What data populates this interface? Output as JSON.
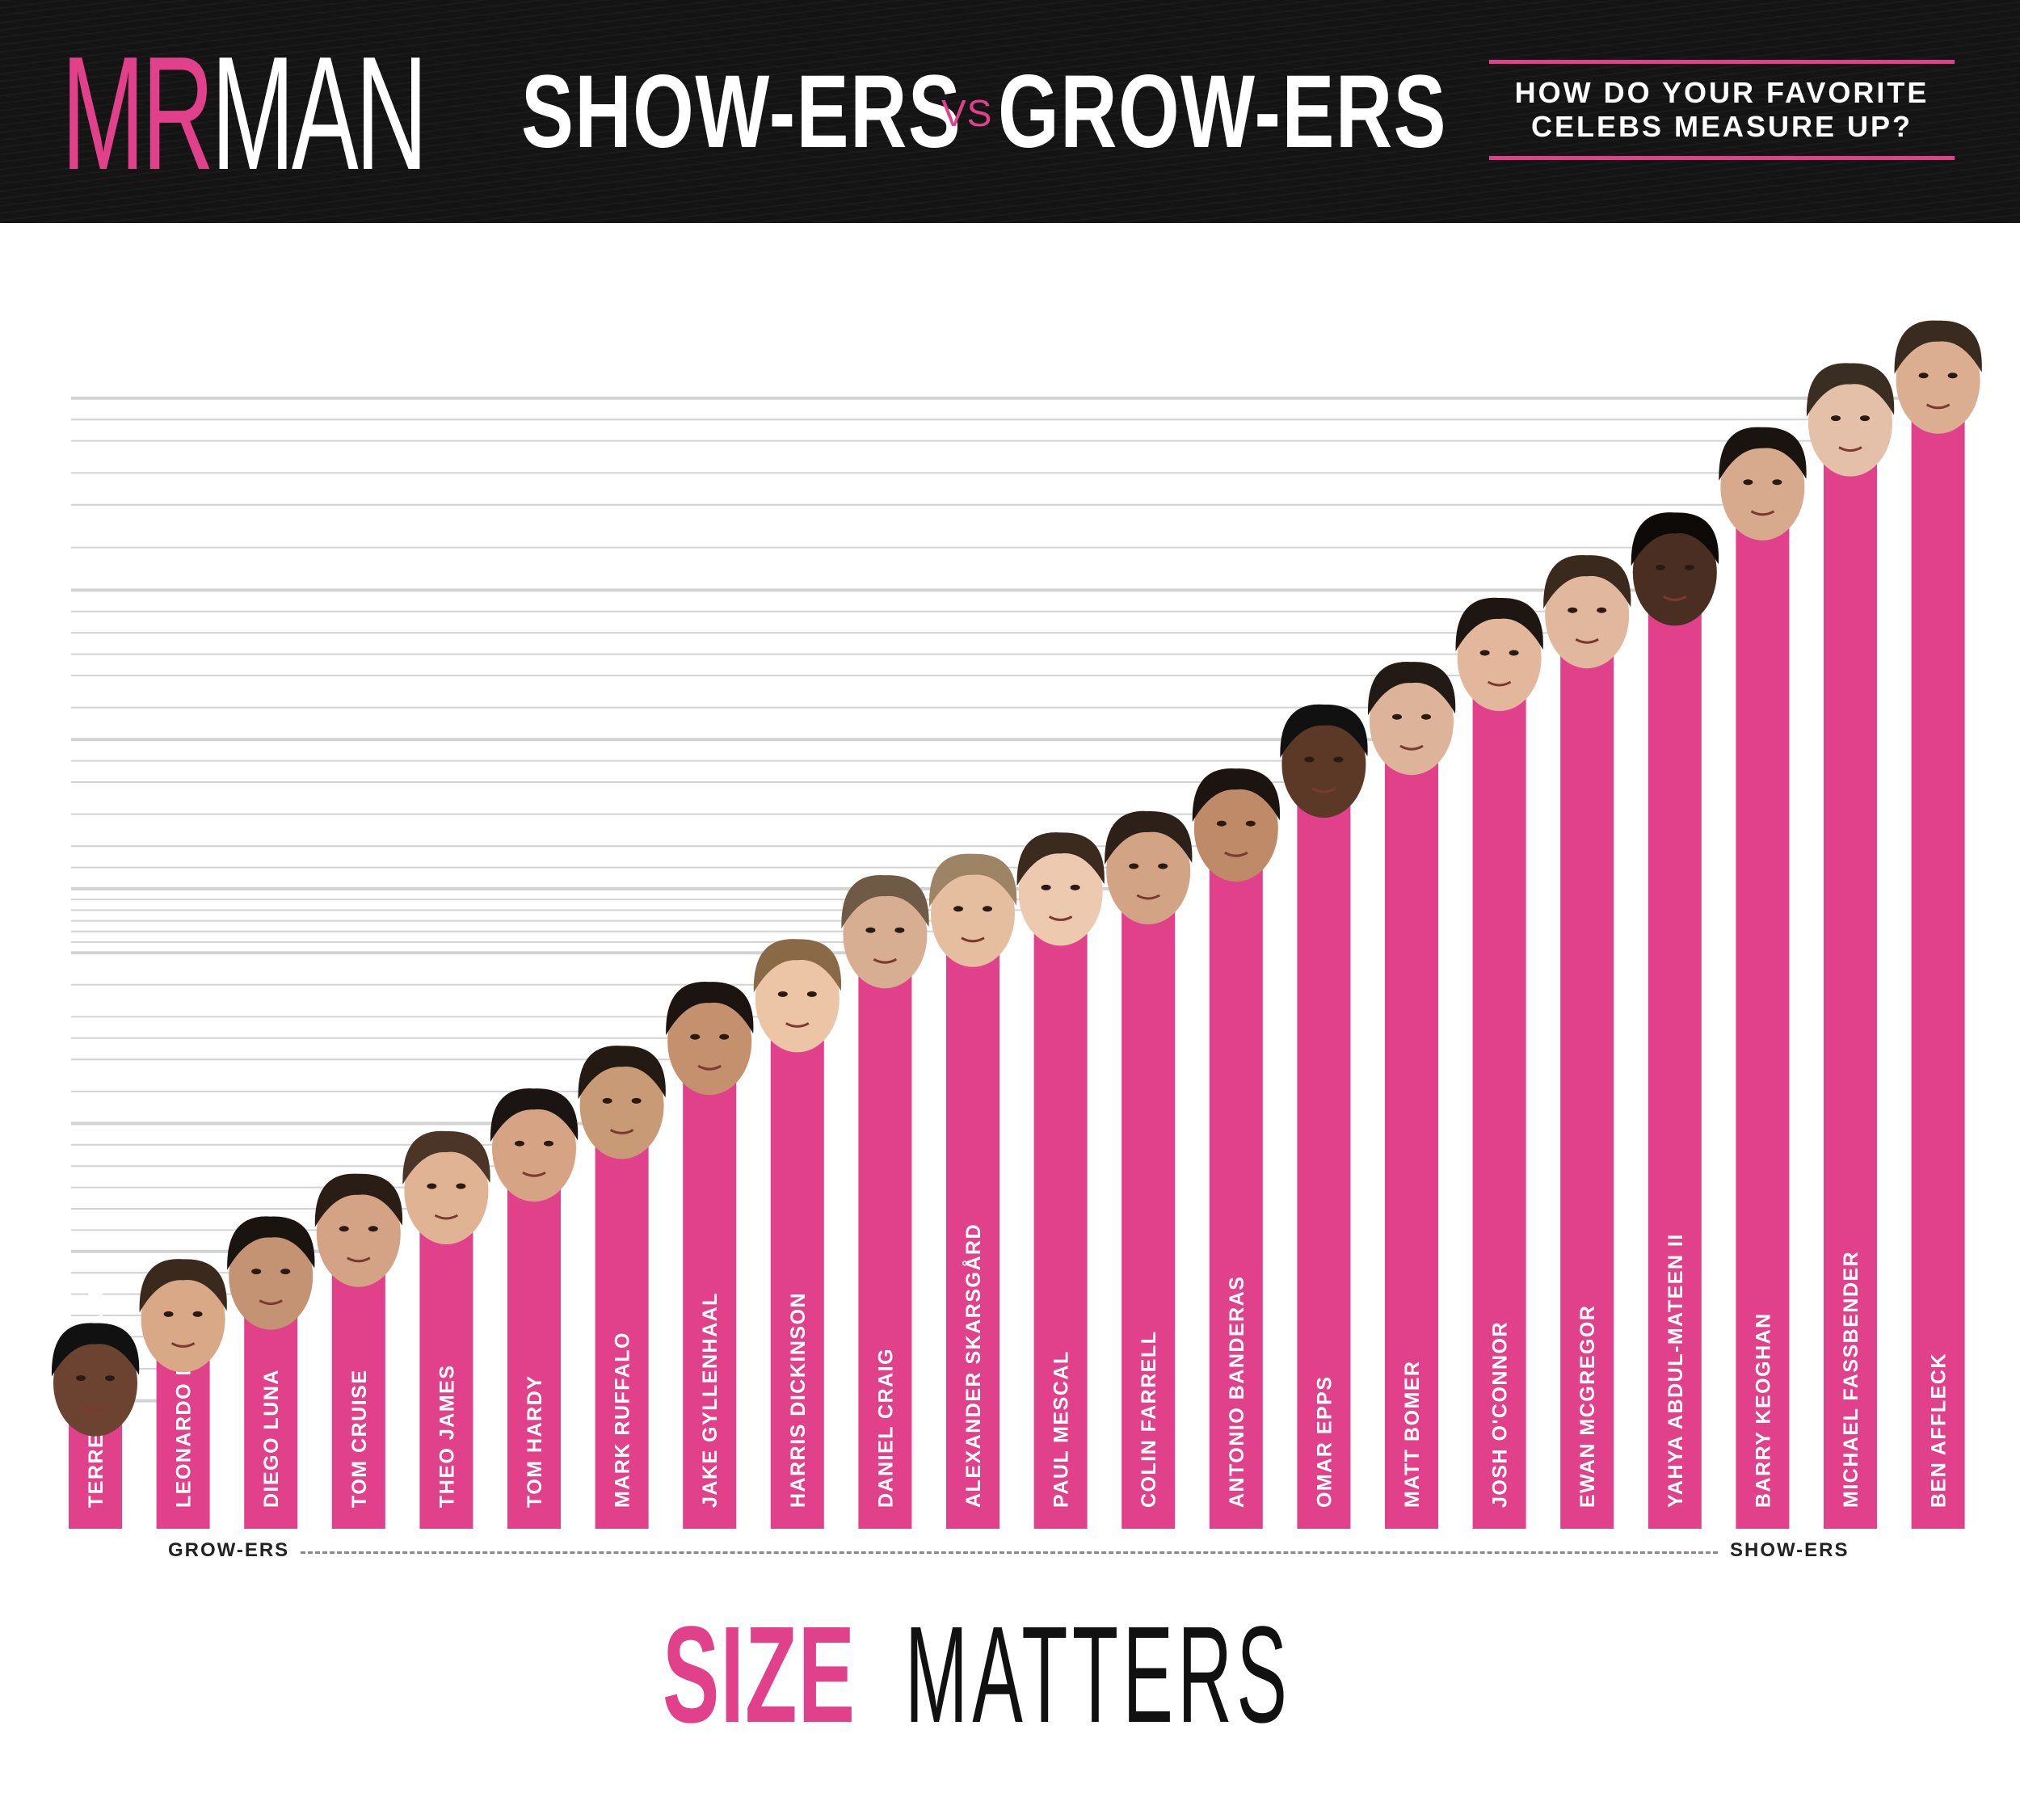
{
  "header": {
    "logo_mr": "MR",
    "logo_man": "MAN",
    "title_left": "SHOW-ERS",
    "title_vs": "VS",
    "title_right": "GROW-ERS",
    "tagline_line1": "HOW DO YOUR FAVORITE",
    "tagline_line2": "CELEBS MEASURE UP?"
  },
  "axis": {
    "left_label": "GROW-ERS",
    "right_label": "SHOW-ERS"
  },
  "footer": {
    "title_accent": "SIZE",
    "title_rest": "MATTERS"
  },
  "colors": {
    "bar": "#e0418a",
    "accent": "#e0418a",
    "header_bg": "#141414",
    "gridline": "#d3d3d3"
  },
  "chart_data": {
    "type": "bar",
    "categories": [
      "TERRENCE HOWARD",
      "LEONARDO DICAPRIO",
      "DIEGO LUNA",
      "TOM CRUISE",
      "THEO JAMES",
      "TOM HARDY",
      "MARK RUFFALO",
      "JAKE GYLLENHAAL",
      "HARRIS DICKINSON",
      "DANIEL CRAIG",
      "ALEXANDER SKARSGÅRD",
      "PAUL MESCAL",
      "COLIN FARRELL",
      "ANTONIO BANDERAS",
      "OMAR EPPS",
      "MATT BOMER",
      "JOSH O'CONNOR",
      "EWAN MCGREGOR",
      "YAHYA ABDUL-MATEEN II",
      "BARRY KEOGHAN",
      "MICHAEL FASSBENDER",
      "BEN AFFLECK"
    ],
    "values": [
      6,
      9,
      11,
      13,
      15,
      17,
      19,
      22,
      24,
      27,
      28,
      29,
      30,
      32,
      35,
      37,
      40,
      42,
      44,
      48,
      51,
      53
    ],
    "ylim": [
      0,
      60
    ],
    "grid": true,
    "legend": "none"
  }
}
